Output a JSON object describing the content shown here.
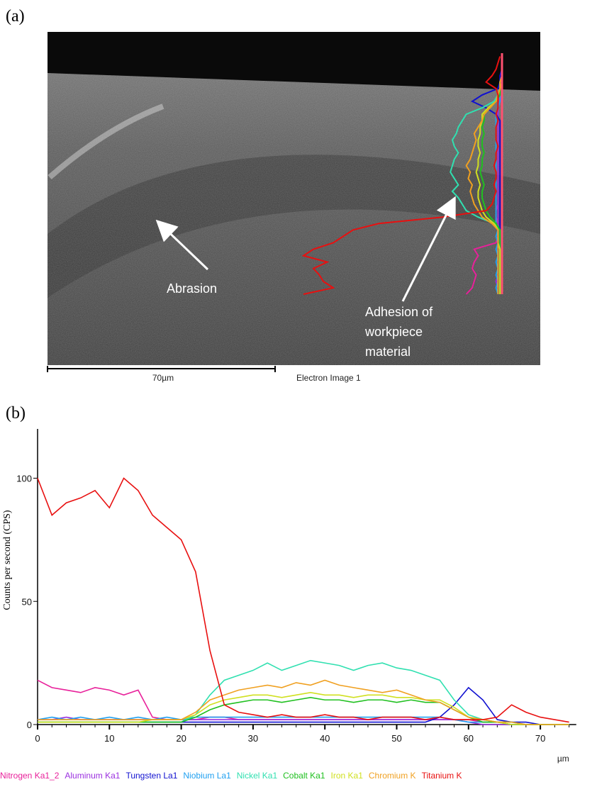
{
  "panel_a": {
    "label": "(a)",
    "annotations": [
      {
        "text": "Abrasion"
      },
      {
        "lines": [
          "Adhesion of",
          "workpiece",
          "material"
        ]
      }
    ],
    "scale_bar": "70µm",
    "caption": "Electron Image 1"
  },
  "chart_data": {
    "type": "line",
    "label": "(b)",
    "y_label": "Counts per second (CPS)",
    "x_label": "µm",
    "x": [
      0,
      2,
      4,
      6,
      8,
      10,
      12,
      14,
      16,
      18,
      20,
      22,
      24,
      26,
      28,
      30,
      32,
      34,
      36,
      38,
      40,
      42,
      44,
      46,
      48,
      50,
      52,
      54,
      56,
      58,
      60,
      62,
      64,
      66,
      68,
      70,
      72,
      74
    ],
    "xlim": [
      0,
      75
    ],
    "ylim": [
      0,
      120
    ],
    "xticks": [
      0,
      10,
      20,
      30,
      40,
      50,
      60,
      70
    ],
    "yticks": [
      0,
      50,
      100
    ],
    "series": [
      {
        "name": "Nitrogen Ka1_2",
        "color": "#e8209a",
        "values": [
          18,
          15,
          14,
          13,
          15,
          14,
          12,
          14,
          3,
          2,
          2,
          2,
          3,
          3,
          2,
          2,
          2,
          2,
          2,
          2,
          2,
          2,
          2,
          2,
          2,
          2,
          2,
          2,
          2,
          2,
          2,
          1,
          1,
          1,
          0,
          0,
          0,
          0
        ]
      },
      {
        "name": "Aluminum Ka1",
        "color": "#9b30e0",
        "values": [
          2,
          2,
          3,
          2,
          2,
          2,
          2,
          2,
          2,
          2,
          2,
          2,
          2,
          2,
          2,
          2,
          2,
          2,
          2,
          2,
          2,
          2,
          2,
          2,
          2,
          2,
          2,
          2,
          2,
          2,
          1,
          0,
          0,
          0,
          0,
          0,
          0,
          0
        ]
      },
      {
        "name": "Tungsten La1",
        "color": "#1010d0",
        "values": [
          1,
          1,
          1,
          1,
          1,
          1,
          1,
          1,
          1,
          1,
          1,
          1,
          1,
          1,
          1,
          1,
          1,
          1,
          1,
          1,
          1,
          1,
          1,
          1,
          1,
          1,
          1,
          1,
          3,
          8,
          15,
          10,
          2,
          1,
          1,
          0,
          0,
          0
        ]
      },
      {
        "name": "Niobium La1",
        "color": "#20a0f0",
        "values": [
          2,
          3,
          2,
          3,
          2,
          3,
          2,
          3,
          2,
          3,
          2,
          3,
          3,
          3,
          3,
          3,
          3,
          3,
          3,
          3,
          3,
          3,
          3,
          3,
          3,
          3,
          3,
          3,
          3,
          2,
          1,
          1,
          1,
          0,
          0,
          0,
          0,
          0
        ]
      },
      {
        "name": "Nickel Ka1",
        "color": "#30e0b0",
        "values": [
          1,
          1,
          1,
          1,
          1,
          1,
          1,
          1,
          1,
          1,
          1,
          4,
          12,
          18,
          20,
          22,
          25,
          22,
          24,
          26,
          25,
          24,
          22,
          24,
          25,
          23,
          22,
          20,
          18,
          10,
          4,
          2,
          1,
          1,
          0,
          0,
          0,
          0
        ]
      },
      {
        "name": "Cobalt Ka1",
        "color": "#20c020",
        "values": [
          1,
          1,
          1,
          1,
          1,
          1,
          1,
          1,
          1,
          1,
          1,
          3,
          6,
          8,
          9,
          10,
          10,
          9,
          10,
          11,
          10,
          10,
          9,
          10,
          10,
          9,
          10,
          9,
          9,
          6,
          3,
          1,
          1,
          0,
          0,
          0,
          0,
          0
        ]
      },
      {
        "name": "Iron Ka1",
        "color": "#d0e020",
        "values": [
          1,
          1,
          1,
          1,
          1,
          1,
          1,
          1,
          2,
          2,
          2,
          4,
          8,
          10,
          11,
          12,
          12,
          11,
          12,
          13,
          12,
          12,
          11,
          12,
          12,
          11,
          11,
          10,
          10,
          7,
          3,
          2,
          1,
          0,
          0,
          0,
          0,
          0
        ]
      },
      {
        "name": "Chromium K",
        "color": "#f0a020",
        "values": [
          2,
          2,
          2,
          2,
          2,
          2,
          2,
          2,
          2,
          2,
          2,
          5,
          10,
          12,
          14,
          15,
          16,
          15,
          17,
          16,
          18,
          16,
          15,
          14,
          13,
          14,
          12,
          10,
          9,
          6,
          3,
          2,
          1,
          1,
          0,
          0,
          0,
          0
        ]
      },
      {
        "name": "Titanium K",
        "color": "#e81010",
        "values": [
          100,
          85,
          90,
          92,
          95,
          88,
          100,
          95,
          85,
          80,
          75,
          62,
          30,
          8,
          5,
          4,
          3,
          4,
          3,
          3,
          4,
          3,
          3,
          2,
          3,
          3,
          3,
          2,
          3,
          2,
          2,
          2,
          3,
          8,
          5,
          3,
          2,
          1
        ]
      }
    ]
  }
}
